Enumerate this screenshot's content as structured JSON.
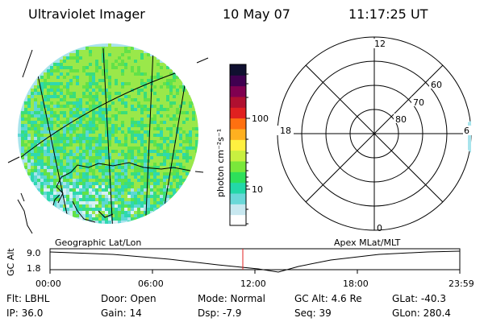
{
  "header": {
    "title": "Ultraviolet Imager",
    "date": "10 May 07",
    "time": "11:17:25 UT"
  },
  "colorbar": {
    "label": "photon cm⁻²s⁻¹",
    "tick_labels": [
      "100",
      "10"
    ],
    "colors": [
      "#ffffff",
      "#c8e8f0",
      "#6ad8d8",
      "#23d8a8",
      "#2ee05a",
      "#7ae83a",
      "#c8f040",
      "#fff040",
      "#ffb020",
      "#ff7010",
      "#e02020",
      "#b01030",
      "#800050",
      "#400050",
      "#101030"
    ]
  },
  "image_panel": {
    "label": "Geographic Lat/Lon",
    "palette": [
      "#d8f0f4",
      "#a8e4ec",
      "#5cd8d4",
      "#2ed8b0",
      "#3ade7a",
      "#62e248",
      "#9ae84a"
    ]
  },
  "polar_plot": {
    "label": "Apex MLat/MLT",
    "mlt_labels": {
      "top": "12",
      "left": "18",
      "right": "6",
      "bottom": "0"
    },
    "lat_labels": [
      "60",
      "70",
      "80"
    ]
  },
  "timeline": {
    "ylabel": "GC Alt",
    "y_ticks": [
      "9.0",
      "1.8"
    ],
    "x_ticks": [
      "00:00",
      "06:00",
      "12:00",
      "18:00",
      "23:59"
    ],
    "marker_color": "#e02020",
    "current_time_hours": 11.29
  },
  "info": {
    "flt": "Flt: LBHL",
    "door": "Door: Open",
    "mode": "Mode: Normal",
    "gc_alt": "GC Alt: 4.6 Re",
    "glat": "GLat: -40.3",
    "ip": "IP: 36.0",
    "gain": "Gain: 14",
    "dsp": "Dsp:    -7.9",
    "seq": "Seq: 39",
    "glon": "GLon: 280.4"
  }
}
